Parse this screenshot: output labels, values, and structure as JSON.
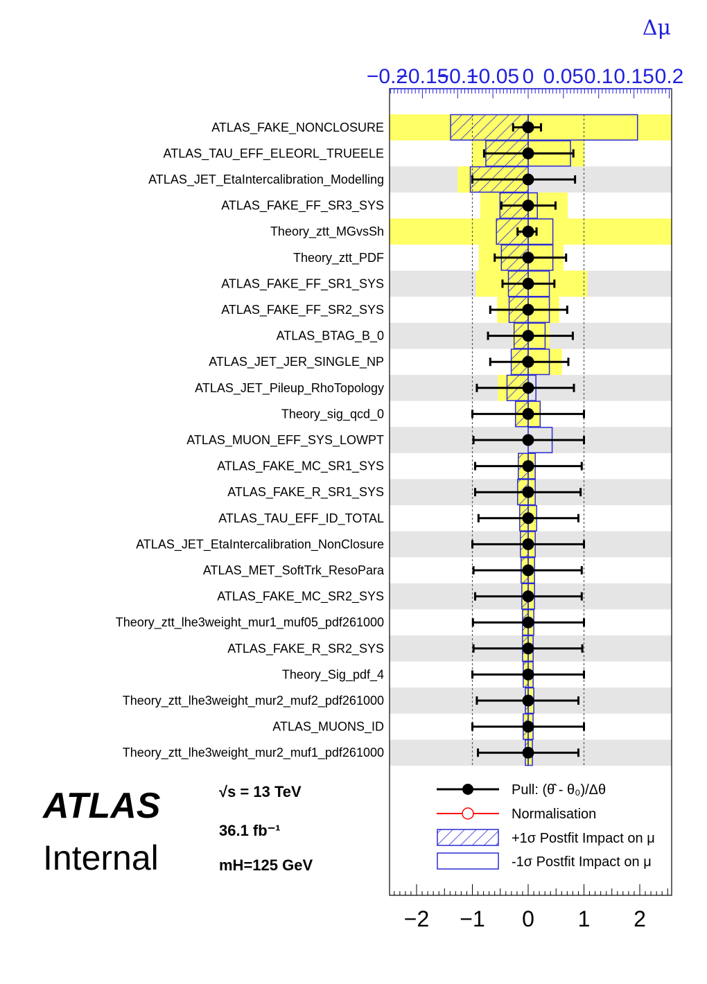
{
  "chart_data": {
    "type": "ranking",
    "top_axis": {
      "label": "Δμ",
      "range": [
        -0.2,
        0.2
      ],
      "ticks": [
        -0.2,
        -0.15,
        -0.1,
        -0.05,
        0,
        0.05,
        0.1,
        0.15,
        0.2
      ],
      "tick_labels": [
        "−0.2",
        "−0.15",
        "−0.1",
        "−0.05",
        "0",
        "0.05",
        "0.1",
        "0.15",
        "0.2"
      ]
    },
    "bottom_axis": {
      "range": [
        -2.5,
        2.6
      ],
      "ticks": [
        -2,
        -1,
        0,
        1,
        2
      ],
      "tick_labels": [
        "−2",
        "−1",
        "0",
        "1",
        "2"
      ]
    },
    "parameters": [
      {
        "name": "ATLAS_FAKE_NONCLOSURE",
        "pull": 0.0,
        "err_lo": -0.27,
        "err_hi": 0.23,
        "prefit_up": 0.205,
        "prefit_down": -0.205,
        "postfit_up": -0.11,
        "postfit_down": 0.155
      },
      {
        "name": "ATLAS_TAU_EFF_ELEORL_TRUEELE",
        "pull": 0.0,
        "err_lo": -0.79,
        "err_hi": 0.81,
        "prefit_up": 0.08,
        "prefit_down": -0.08,
        "postfit_up": -0.06,
        "postfit_down": 0.06
      },
      {
        "name": "ATLAS_JET_EtaIntercalibration_Modelling",
        "pull": 0.0,
        "err_lo": -1.0,
        "err_hi": 0.84,
        "prefit_up": -0.1,
        "prefit_down": 0.0,
        "postfit_up": -0.082,
        "postfit_down": 0.0
      },
      {
        "name": "ATLAS_FAKE_FF_SR3_SYS",
        "pull": 0.0,
        "err_lo": -0.48,
        "err_hi": 0.49,
        "prefit_up": -0.068,
        "prefit_down": 0.056,
        "postfit_up": -0.04,
        "postfit_down": 0.013
      },
      {
        "name": "Theory_ztt_MGvsSh",
        "pull": 0.0,
        "err_lo": -0.19,
        "err_hi": 0.15,
        "prefit_up": -0.2,
        "prefit_down": 0.205,
        "postfit_up": -0.045,
        "postfit_down": 0.035
      },
      {
        "name": "Theory_ztt_PDF",
        "pull": 0.0,
        "err_lo": -0.6,
        "err_hi": 0.68,
        "prefit_up": -0.07,
        "prefit_down": 0.05,
        "postfit_up": -0.038,
        "postfit_down": 0.035
      },
      {
        "name": "ATLAS_FAKE_FF_SR1_SYS",
        "pull": 0.0,
        "err_lo": -0.46,
        "err_hi": 0.47,
        "prefit_up": -0.074,
        "prefit_down": 0.084,
        "postfit_up": -0.028,
        "postfit_down": 0.03
      },
      {
        "name": "ATLAS_FAKE_FF_SR2_SYS",
        "pull": 0.0,
        "err_lo": -0.68,
        "err_hi": 0.7,
        "prefit_up": -0.044,
        "prefit_down": 0.044,
        "postfit_up": -0.027,
        "postfit_down": 0.03
      },
      {
        "name": "ATLAS_BTAG_B_0",
        "pull": 0.0,
        "err_lo": -0.72,
        "err_hi": 0.8,
        "prefit_up": -0.022,
        "prefit_down": 0.03,
        "postfit_up": -0.02,
        "postfit_down": 0.024
      },
      {
        "name": "ATLAS_JET_JER_SINGLE_NP",
        "pull": 0.0,
        "err_lo": -0.68,
        "err_hi": 0.72,
        "prefit_up": -0.024,
        "prefit_down": 0.048,
        "postfit_up": -0.024,
        "postfit_down": 0.03
      },
      {
        "name": "ATLAS_JET_Pileup_RhoTopology",
        "pull": 0.0,
        "err_lo": -0.92,
        "err_hi": 0.82,
        "prefit_up": -0.043,
        "prefit_down": 0.0,
        "postfit_up": -0.03,
        "postfit_down": 0.011
      },
      {
        "name": "Theory_sig_qcd_0",
        "pull": 0.0,
        "err_lo": -1.0,
        "err_hi": 1.0,
        "prefit_up": -0.018,
        "prefit_down": 0.018,
        "postfit_up": -0.018,
        "postfit_down": 0.017
      },
      {
        "name": "ATLAS_MUON_EFF_SYS_LOWPT",
        "pull": 0.0,
        "err_lo": -0.98,
        "err_hi": 1.0,
        "prefit_up": 0.0,
        "prefit_down": 0.0,
        "postfit_up": 0.0,
        "postfit_down": 0.034
      },
      {
        "name": "ATLAS_FAKE_MC_SR1_SYS",
        "pull": 0.0,
        "err_lo": -0.95,
        "err_hi": 0.96,
        "prefit_up": -0.014,
        "prefit_down": 0.01,
        "postfit_up": -0.014,
        "postfit_down": 0.01
      },
      {
        "name": "ATLAS_FAKE_R_SR1_SYS",
        "pull": 0.0,
        "err_lo": -0.95,
        "err_hi": 0.94,
        "prefit_up": -0.015,
        "prefit_down": 0.01,
        "postfit_up": -0.015,
        "postfit_down": 0.01
      },
      {
        "name": "ATLAS_TAU_EFF_ID_TOTAL",
        "pull": 0.0,
        "err_lo": -0.89,
        "err_hi": 0.9,
        "prefit_up": -0.012,
        "prefit_down": 0.011,
        "postfit_up": -0.012,
        "postfit_down": 0.012
      },
      {
        "name": "ATLAS_JET_EtaIntercalibration_NonClosure",
        "pull": 0.0,
        "err_lo": -1.0,
        "err_hi": 1.0,
        "prefit_up": -0.011,
        "prefit_down": 0.01,
        "postfit_up": -0.011,
        "postfit_down": 0.01
      },
      {
        "name": "ATLAS_MET_SoftTrk_ResoPara",
        "pull": 0.0,
        "err_lo": -0.98,
        "err_hi": 0.96,
        "prefit_up": -0.01,
        "prefit_down": 0.009,
        "postfit_up": -0.01,
        "postfit_down": 0.009
      },
      {
        "name": "ATLAS_FAKE_MC_SR2_SYS",
        "pull": 0.0,
        "err_lo": -0.95,
        "err_hi": 0.96,
        "prefit_up": -0.009,
        "prefit_down": 0.009,
        "postfit_up": -0.009,
        "postfit_down": 0.009
      },
      {
        "name": "Theory_ztt_lhe3weight_mur1_muf05_pdf261000",
        "pull": 0.0,
        "err_lo": -0.99,
        "err_hi": 1.0,
        "prefit_up": -0.008,
        "prefit_down": 0.008,
        "postfit_up": -0.008,
        "postfit_down": 0.008
      },
      {
        "name": "ATLAS_FAKE_R_SR2_SYS",
        "pull": 0.0,
        "err_lo": -0.98,
        "err_hi": 0.97,
        "prefit_up": -0.008,
        "prefit_down": 0.007,
        "postfit_up": -0.008,
        "postfit_down": 0.007
      },
      {
        "name": "Theory_Sig_pdf_4",
        "pull": 0.0,
        "err_lo": -1.0,
        "err_hi": 1.0,
        "prefit_up": -0.007,
        "prefit_down": 0.007,
        "postfit_up": -0.007,
        "postfit_down": 0.007
      },
      {
        "name": "Theory_ztt_lhe3weight_mur2_muf2_pdf261000",
        "pull": 0.0,
        "err_lo": -0.92,
        "err_hi": 0.9,
        "prefit_up": -0.004,
        "prefit_down": 0.008,
        "postfit_up": -0.004,
        "postfit_down": 0.008
      },
      {
        "name": "ATLAS_MUONS_ID",
        "pull": 0.0,
        "err_lo": -1.0,
        "err_hi": 1.0,
        "prefit_up": -0.007,
        "prefit_down": 0.007,
        "postfit_up": -0.007,
        "postfit_down": 0.007
      },
      {
        "name": "Theory_ztt_lhe3weight_mur2_muf1_pdf261000",
        "pull": 0.0,
        "err_lo": -0.9,
        "err_hi": 0.9,
        "prefit_up": -0.004,
        "prefit_down": 0.006,
        "postfit_up": -0.004,
        "postfit_down": 0.006
      }
    ],
    "legend": [
      {
        "label": "Pull: (θ̂ - θ₀)/Δθ",
        "style": "black-marker-line"
      },
      {
        "label": "Normalisation",
        "style": "red-open-marker-line"
      },
      {
        "label": "+1σ Postfit Impact on μ",
        "style": "blue-hatched-box"
      },
      {
        "label": "-1σ Postfit Impact on μ",
        "style": "blue-open-box"
      }
    ],
    "legend_placement": "bottom-right",
    "grid": false,
    "colors": {
      "prefit_band": "#ffff66",
      "postfit_box": "#2a2ad6",
      "pull": "#000000",
      "normalisation": "#ff0000",
      "stripe": "#e5e5e5",
      "top_axis": "#1f1fdc"
    }
  },
  "annotations": {
    "experiment": "ATLAS",
    "status": "Internal",
    "energy": "√s = 13 TeV",
    "lumi": "36.1 fb⁻¹",
    "mass": "mH=125 GeV"
  }
}
